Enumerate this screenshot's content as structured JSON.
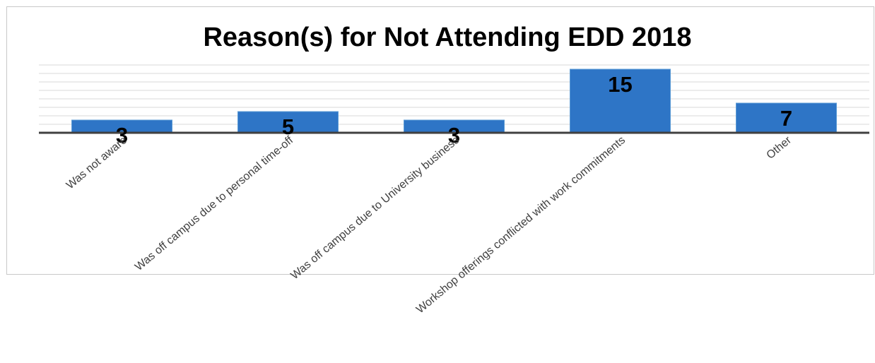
{
  "chart_data": {
    "type": "bar",
    "title": "Reason(s) for Not Attending EDD 2018",
    "categories": [
      "Was not aware",
      "Was off campus due to personal time-off",
      "Was off campus due to University business",
      "Workshop offerings conflicted with work commitments",
      "Other"
    ],
    "values": [
      3,
      5,
      3,
      15,
      7
    ],
    "ylim": [
      0,
      16
    ],
    "grid": true,
    "legend": "none",
    "xlabel": "",
    "ylabel": ""
  },
  "colors": {
    "bar": "#2e75c6",
    "bar_edge": "#5b9bd5",
    "gridline": "#d9d9d9",
    "axis": "#404040",
    "label": "#000000"
  }
}
